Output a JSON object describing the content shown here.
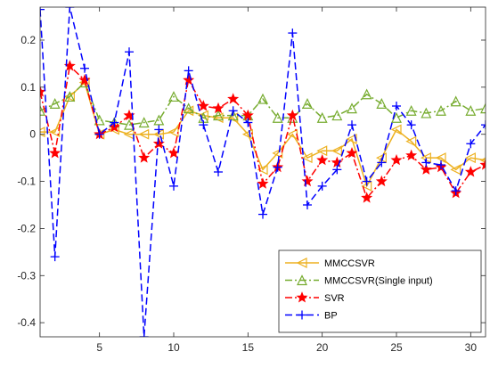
{
  "chart_data": {
    "type": "line",
    "title": "",
    "xlabel": "",
    "ylabel": "",
    "xlim": [
      1,
      31
    ],
    "ylim": [
      -0.43,
      0.27
    ],
    "x_ticks": [
      5,
      10,
      15,
      20,
      25,
      30
    ],
    "y_ticks": [
      -0.4,
      -0.3,
      -0.2,
      -0.1,
      0,
      0.1,
      0.2
    ],
    "y_tick_labels": [
      "-0.4",
      "-0.3",
      "-0.2",
      "-0.1",
      "0",
      "0.1",
      "0.2"
    ],
    "grid": false,
    "legend_position": "bottom-right",
    "x": [
      1,
      2,
      3,
      4,
      5,
      6,
      7,
      8,
      9,
      10,
      11,
      12,
      13,
      14,
      15,
      16,
      17,
      18,
      19,
      20,
      21,
      22,
      23,
      24,
      25,
      26,
      27,
      28,
      29,
      30,
      31
    ],
    "series": [
      {
        "name": "MMCCSVR",
        "color": "#EDB120",
        "line_style": "solid",
        "marker": "triangle-left",
        "values": [
          0.005,
          0.005,
          0.08,
          0.11,
          0.0,
          0.01,
          0.0,
          0.0,
          0.0,
          0.005,
          0.05,
          0.04,
          0.035,
          0.035,
          0.0,
          -0.075,
          -0.04,
          0.0,
          -0.05,
          -0.035,
          -0.035,
          -0.01,
          -0.11,
          -0.05,
          0.01,
          -0.015,
          -0.05,
          -0.05,
          -0.075,
          -0.05,
          -0.055
        ]
      },
      {
        "name": "MMCCSVR(Single input)",
        "color": "#77AC30",
        "line_style": "dashdot",
        "marker": "triangle-up",
        "values": [
          0.05,
          0.065,
          0.08,
          0.11,
          0.03,
          0.025,
          0.02,
          0.025,
          0.03,
          0.08,
          0.055,
          0.035,
          0.04,
          0.04,
          0.04,
          0.075,
          0.035,
          0.035,
          0.065,
          0.035,
          0.04,
          0.055,
          0.085,
          0.065,
          0.035,
          0.05,
          0.045,
          0.05,
          0.07,
          0.05,
          0.055
        ]
      },
      {
        "name": "SVR",
        "color": "#FF0000",
        "line_style": "dashdot",
        "marker": "star",
        "values": [
          0.09,
          -0.04,
          0.145,
          0.115,
          0.0,
          0.015,
          0.04,
          -0.05,
          -0.02,
          -0.04,
          0.115,
          0.06,
          0.055,
          0.075,
          0.04,
          -0.105,
          -0.07,
          0.04,
          -0.1,
          -0.055,
          -0.06,
          -0.04,
          -0.135,
          -0.1,
          -0.055,
          -0.045,
          -0.075,
          -0.07,
          -0.125,
          -0.08,
          -0.065
        ]
      },
      {
        "name": "BP",
        "color": "#0000FF",
        "line_style": "dashed",
        "marker": "plus",
        "values": [
          0.265,
          -0.26,
          0.27,
          0.14,
          0.0,
          0.025,
          0.175,
          -0.43,
          0.01,
          -0.11,
          0.135,
          0.02,
          -0.08,
          0.05,
          0.025,
          -0.17,
          -0.07,
          0.215,
          -0.15,
          -0.11,
          -0.075,
          0.02,
          -0.1,
          -0.06,
          0.06,
          0.02,
          -0.06,
          -0.065,
          -0.12,
          -0.02,
          0.02
        ]
      }
    ]
  }
}
